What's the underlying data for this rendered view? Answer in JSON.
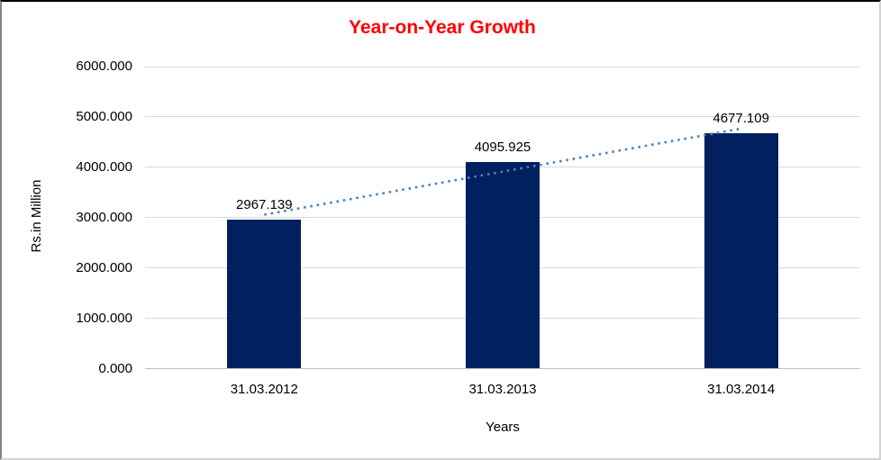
{
  "chart_data": {
    "type": "bar",
    "title": "Year-on-Year Growth",
    "title_color": "#ff0000",
    "xlabel": "Years",
    "ylabel": "Rs.in Million",
    "categories": [
      "31.03.2012",
      "31.03.2013",
      "31.03.2014"
    ],
    "values": [
      2967.139,
      4095.925,
      4677.109
    ],
    "data_labels": [
      "2967.139",
      "4095.925",
      "4677.109"
    ],
    "ylim": [
      0,
      6000
    ],
    "y_tick_step": 1000,
    "y_tick_labels": [
      "0.000",
      "1000.000",
      "2000.000",
      "3000.000",
      "4000.000",
      "5000.000",
      "6000.000"
    ],
    "grid": true,
    "legend": "none",
    "bar_color": "#002060",
    "trendline": {
      "type": "linear",
      "style": "dotted",
      "color": "#4f81bd"
    }
  }
}
